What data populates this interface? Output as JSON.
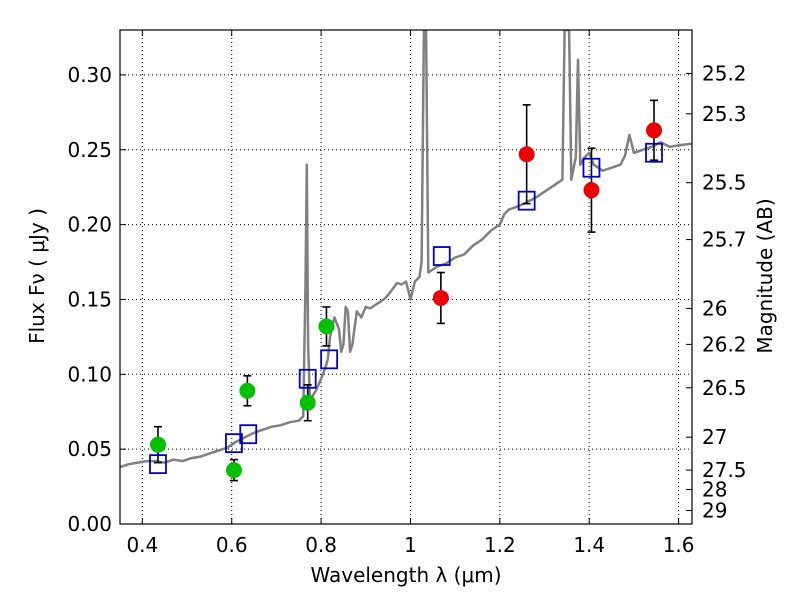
{
  "chart_data": {
    "type": "scatter",
    "xlabel": "Wavelength  λ (μm)",
    "ylabel": "Flux  Fν  ( μJy )",
    "y2label": "Magnitude (AB)",
    "xlim": [
      0.35,
      1.63
    ],
    "ylim": [
      0.0,
      0.33
    ],
    "grid": true,
    "x_ticks": [
      0.4,
      0.6,
      0.8,
      1.0,
      1.2,
      1.4,
      1.6
    ],
    "x_tick_labels": [
      "0.4",
      "0.6",
      "0.8",
      "1",
      "1.2",
      "1.4",
      "1.6"
    ],
    "y_ticks": [
      0.0,
      0.05,
      0.1,
      0.15,
      0.2,
      0.25,
      0.3
    ],
    "y_tick_labels": [
      "0.00",
      "0.05",
      "0.10",
      "0.15",
      "0.20",
      "0.25",
      "0.30"
    ],
    "mag_ticks": [
      {
        "label": "25.2",
        "y": 0.301
      },
      {
        "label": "25.3",
        "y": 0.274
      },
      {
        "label": "25.5",
        "y": 0.228
      },
      {
        "label": "25.7",
        "y": 0.19
      },
      {
        "label": "26",
        "y": 0.144
      },
      {
        "label": "26.2",
        "y": 0.12
      },
      {
        "label": "26.5",
        "y": 0.091
      },
      {
        "label": "27",
        "y": 0.058
      },
      {
        "label": "27.5",
        "y": 0.036
      },
      {
        "label": "28",
        "y": 0.023
      },
      {
        "label": "29",
        "y": 0.009
      }
    ],
    "colors": {
      "model": "#808080",
      "green": "#00c000",
      "red": "#ee0000",
      "square": "#0000cc",
      "grid": "#000000"
    },
    "series": [
      {
        "type": "line",
        "points": [
          [
            0.35,
            0.038
          ],
          [
            0.37,
            0.04
          ],
          [
            0.39,
            0.041
          ],
          [
            0.41,
            0.042
          ],
          [
            0.43,
            0.042
          ],
          [
            0.45,
            0.041
          ],
          [
            0.47,
            0.043
          ],
          [
            0.49,
            0.042
          ],
          [
            0.51,
            0.044
          ],
          [
            0.53,
            0.045
          ],
          [
            0.55,
            0.047
          ],
          [
            0.57,
            0.049
          ],
          [
            0.59,
            0.051
          ],
          [
            0.61,
            0.055
          ],
          [
            0.63,
            0.058
          ],
          [
            0.65,
            0.061
          ],
          [
            0.67,
            0.063
          ],
          [
            0.69,
            0.065
          ],
          [
            0.71,
            0.066
          ],
          [
            0.73,
            0.068
          ],
          [
            0.75,
            0.069
          ],
          [
            0.76,
            0.072
          ],
          [
            0.765,
            0.16
          ],
          [
            0.768,
            0.24
          ],
          [
            0.771,
            0.12
          ],
          [
            0.775,
            0.083
          ],
          [
            0.78,
            0.085
          ],
          [
            0.79,
            0.09
          ],
          [
            0.8,
            0.097
          ],
          [
            0.81,
            0.105
          ],
          [
            0.815,
            0.11
          ],
          [
            0.82,
            0.125
          ],
          [
            0.83,
            0.138
          ],
          [
            0.84,
            0.13
          ],
          [
            0.845,
            0.115
          ],
          [
            0.85,
            0.12
          ],
          [
            0.855,
            0.145
          ],
          [
            0.86,
            0.142
          ],
          [
            0.865,
            0.115
          ],
          [
            0.87,
            0.12
          ],
          [
            0.88,
            0.142
          ],
          [
            0.89,
            0.138
          ],
          [
            0.9,
            0.145
          ],
          [
            0.91,
            0.144
          ],
          [
            0.92,
            0.146
          ],
          [
            0.93,
            0.148
          ],
          [
            0.94,
            0.15
          ],
          [
            0.95,
            0.153
          ],
          [
            0.96,
            0.157
          ],
          [
            0.97,
            0.161
          ],
          [
            0.98,
            0.16
          ],
          [
            0.99,
            0.162
          ],
          [
            1.0,
            0.15
          ],
          [
            1.01,
            0.162
          ],
          [
            1.02,
            0.165
          ],
          [
            1.025,
            0.175
          ],
          [
            1.03,
            0.33
          ],
          [
            1.035,
            0.33
          ],
          [
            1.04,
            0.168
          ],
          [
            1.05,
            0.17
          ],
          [
            1.06,
            0.172
          ],
          [
            1.08,
            0.174
          ],
          [
            1.1,
            0.178
          ],
          [
            1.12,
            0.18
          ],
          [
            1.14,
            0.186
          ],
          [
            1.16,
            0.19
          ],
          [
            1.18,
            0.196
          ],
          [
            1.2,
            0.2
          ],
          [
            1.21,
            0.207
          ],
          [
            1.22,
            0.21
          ],
          [
            1.24,
            0.212
          ],
          [
            1.26,
            0.215
          ],
          [
            1.28,
            0.218
          ],
          [
            1.3,
            0.222
          ],
          [
            1.32,
            0.226
          ],
          [
            1.34,
            0.23
          ],
          [
            1.345,
            0.33
          ],
          [
            1.355,
            0.33
          ],
          [
            1.36,
            0.23
          ],
          [
            1.37,
            0.245
          ],
          [
            1.375,
            0.31
          ],
          [
            1.38,
            0.24
          ],
          [
            1.39,
            0.245
          ],
          [
            1.4,
            0.248
          ],
          [
            1.41,
            0.24
          ],
          [
            1.43,
            0.236
          ],
          [
            1.45,
            0.238
          ],
          [
            1.47,
            0.24
          ],
          [
            1.48,
            0.246
          ],
          [
            1.49,
            0.26
          ],
          [
            1.5,
            0.248
          ],
          [
            1.52,
            0.25
          ],
          [
            1.54,
            0.252
          ],
          [
            1.56,
            0.255
          ],
          [
            1.58,
            0.252
          ],
          [
            1.6,
            0.253
          ],
          [
            1.63,
            0.254
          ]
        ]
      },
      {
        "type": "scatter",
        "marker": "circle",
        "color": "green",
        "points": [
          {
            "x": 0.435,
            "y": 0.053,
            "err": 0.012
          },
          {
            "x": 0.605,
            "y": 0.036,
            "err": 0.007
          },
          {
            "x": 0.635,
            "y": 0.089,
            "err": 0.01
          },
          {
            "x": 0.77,
            "y": 0.081,
            "err": 0.012
          },
          {
            "x": 0.812,
            "y": 0.132,
            "err": 0.013
          }
        ]
      },
      {
        "type": "scatter",
        "marker": "circle",
        "color": "red",
        "points": [
          {
            "x": 1.068,
            "y": 0.151,
            "err": 0.017
          },
          {
            "x": 1.26,
            "y": 0.247,
            "err": 0.033
          },
          {
            "x": 1.405,
            "y": 0.223,
            "err": 0.028
          },
          {
            "x": 1.545,
            "y": 0.263,
            "err": 0.02
          }
        ]
      },
      {
        "type": "scatter",
        "marker": "square",
        "color": "square",
        "points": [
          {
            "x": 0.435,
            "y": 0.04
          },
          {
            "x": 0.605,
            "y": 0.054
          },
          {
            "x": 0.637,
            "y": 0.06
          },
          {
            "x": 0.77,
            "y": 0.097
          },
          {
            "x": 0.818,
            "y": 0.11
          },
          {
            "x": 1.07,
            "y": 0.179
          },
          {
            "x": 1.26,
            "y": 0.216
          },
          {
            "x": 1.405,
            "y": 0.238
          },
          {
            "x": 1.545,
            "y": 0.248
          }
        ]
      }
    ]
  }
}
